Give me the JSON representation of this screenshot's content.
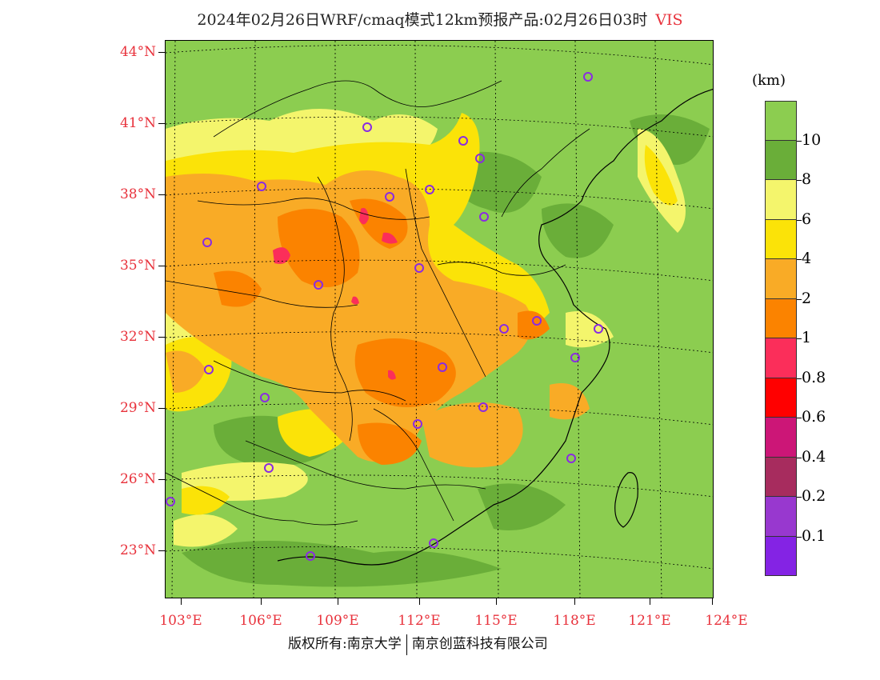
{
  "title": {
    "main": "2024年02月26日WRF/cmaq模式12km预报产品:02月26日03时",
    "variable": "VIS",
    "variable_color": "#e8323c"
  },
  "latitude_labels": [
    "44°N",
    "41°N",
    "38°N",
    "35°N",
    "32°N",
    "29°N",
    "26°N",
    "23°N"
  ],
  "longitude_labels": [
    "103°E",
    "106°E",
    "109°E",
    "112°E",
    "115°E",
    "118°E",
    "121°E",
    "124°E"
  ],
  "axis_label_color": "#e8323c",
  "legend": {
    "unit": "(km)",
    "entries": [
      {
        "label": "10",
        "color": "#8ccd50"
      },
      {
        "label": "8",
        "color": "#6aae39"
      },
      {
        "label": "6",
        "color": "#f4f56c"
      },
      {
        "label": "4",
        "color": "#fbe308"
      },
      {
        "label": "2",
        "color": "#f9ab26"
      },
      {
        "label": "1",
        "color": "#fb8300"
      },
      {
        "label": "0.8",
        "color": "#fb2e5a"
      },
      {
        "label": "0.6",
        "color": "#ff0000"
      },
      {
        "label": "0.4",
        "color": "#cc1677"
      },
      {
        "label": "0.2",
        "color": "#a72c5e"
      },
      {
        "label": "0.1",
        "color": "#9838cf"
      },
      {
        "label": "",
        "color": "#8423e4"
      }
    ]
  },
  "footer": {
    "left": "版权所有:南京大学",
    "right": "南京创蓝科技有限公司"
  }
}
